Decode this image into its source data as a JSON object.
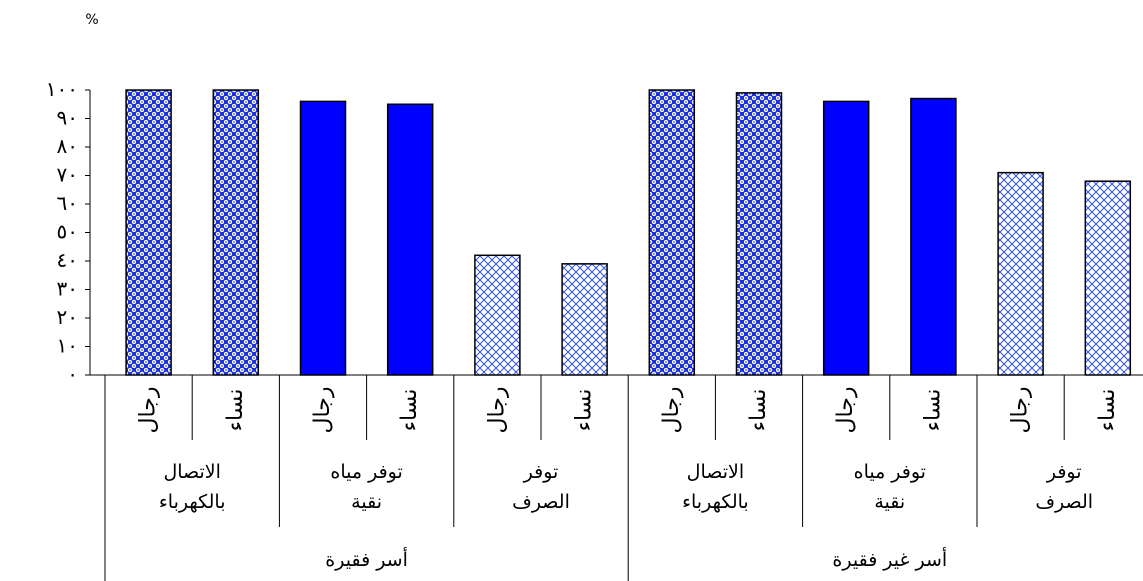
{
  "chart_data": {
    "type": "bar",
    "unit_label": "%",
    "ylim": [
      0,
      100
    ],
    "yticks": [
      "٠",
      "١٠",
      "٢٠",
      "٣٠",
      "٤٠",
      "٥٠",
      "٦٠",
      "٧٠",
      "٨٠",
      "٩٠",
      "١٠٠"
    ],
    "grid": false,
    "legend": "none",
    "groups": [
      {
        "name": "أسر فقيرة",
        "indicators": [
          {
            "name_lines": [
              "الاتصال",
              "بالكهرباء"
            ],
            "pattern": "dots",
            "bars": [
              {
                "sex": "رجال",
                "value": 100
              },
              {
                "sex": "نساء",
                "value": 100
              }
            ]
          },
          {
            "name_lines": [
              "توفر مياه",
              "نقية"
            ],
            "pattern": "solid",
            "bars": [
              {
                "sex": "رجال",
                "value": 96
              },
              {
                "sex": "نساء",
                "value": 95
              }
            ]
          },
          {
            "name_lines": [
              "توفر",
              "الصرف"
            ],
            "pattern": "cross",
            "bars": [
              {
                "sex": "رجال",
                "value": 42
              },
              {
                "sex": "نساء",
                "value": 39
              }
            ]
          }
        ]
      },
      {
        "name": "أسر غير فقيرة",
        "indicators": [
          {
            "name_lines": [
              "الاتصال",
              "بالكهرباء"
            ],
            "pattern": "dots",
            "bars": [
              {
                "sex": "رجال",
                "value": 100
              },
              {
                "sex": "نساء",
                "value": 99
              }
            ]
          },
          {
            "name_lines": [
              "توفر مياه",
              "نقية"
            ],
            "pattern": "solid",
            "bars": [
              {
                "sex": "رجال",
                "value": 96
              },
              {
                "sex": "نساء",
                "value": 97
              }
            ]
          },
          {
            "name_lines": [
              "توفر",
              "الصرف"
            ],
            "pattern": "cross",
            "bars": [
              {
                "sex": "رجال",
                "value": 71
              },
              {
                "sex": "نساء",
                "value": 68
              }
            ]
          }
        ]
      }
    ],
    "colors": {
      "solid": "#0000ff",
      "dots": "#1a2fd8",
      "cross": "#3355ee"
    }
  }
}
